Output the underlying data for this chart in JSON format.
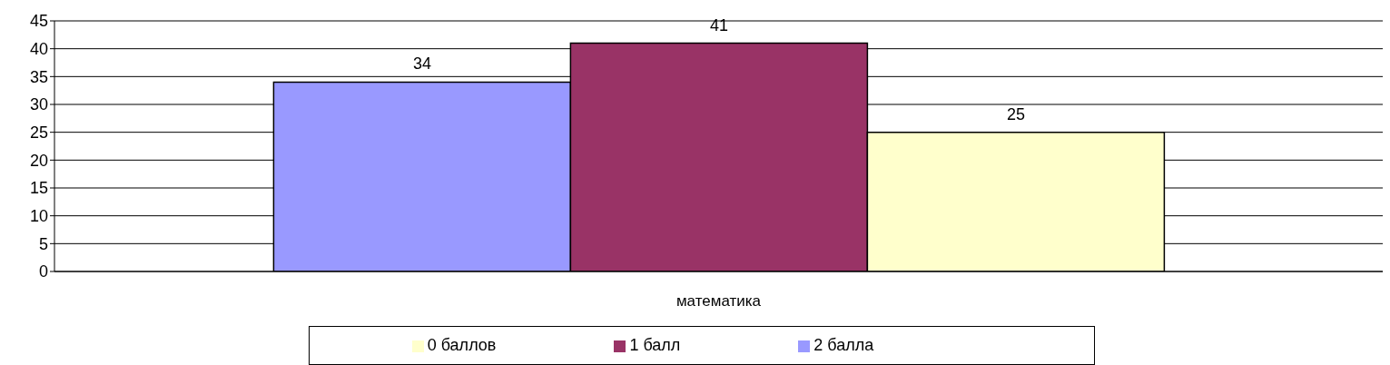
{
  "chart_data": {
    "type": "bar",
    "categories": [
      "математика"
    ],
    "series": [
      {
        "name": "2 балла",
        "color": "#9999ff",
        "values": [
          34
        ]
      },
      {
        "name": "1 балл",
        "color": "#993366",
        "values": [
          41
        ]
      },
      {
        "name": "0 баллов",
        "color": "#ffffcc",
        "values": [
          25
        ]
      }
    ],
    "ylim": [
      0,
      45
    ],
    "yticks": [
      0,
      5,
      10,
      15,
      20,
      25,
      30,
      35,
      40,
      45
    ],
    "grid": "y",
    "legend": "bottom",
    "data_labels": true
  }
}
